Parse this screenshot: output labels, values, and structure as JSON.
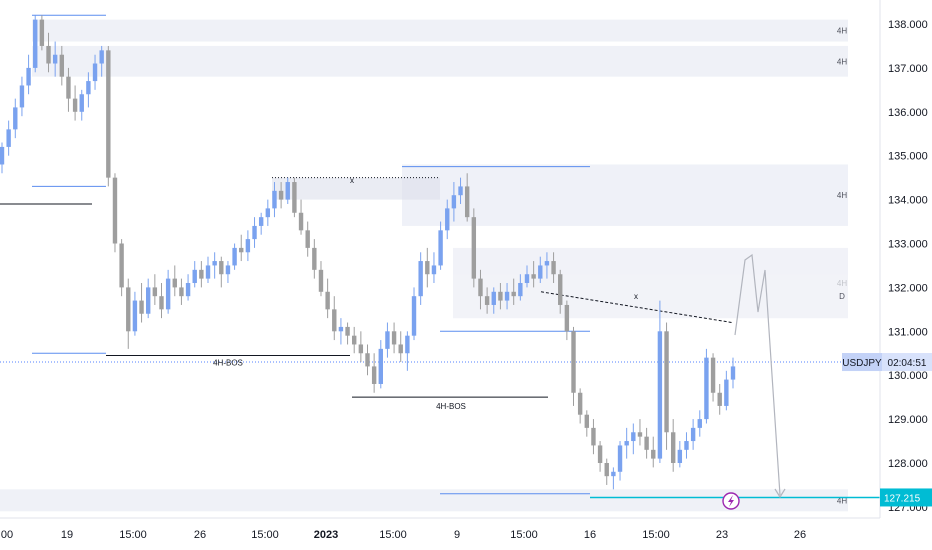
{
  "chart_data": {
    "type": "candlestick",
    "symbol": "USDJPY",
    "price_axis": {
      "range": [
        126.8,
        138.5
      ],
      "ticks": [
        "138.000",
        "137.000",
        "136.000",
        "135.000",
        "134.000",
        "133.000",
        "132.000",
        "131.000",
        "130.000",
        "129.000",
        "128.000",
        "127.000"
      ]
    },
    "time_axis": {
      "ticks": [
        "00",
        "19",
        "15:00",
        "26",
        "15:00",
        "2023",
        "15:00",
        "9",
        "15:00",
        "16",
        "15:00",
        "23",
        "26"
      ]
    },
    "current_price_tag": {
      "symbol": "USDJPY",
      "countdown": "02:04:51",
      "price": 130.3
    },
    "target_tag": {
      "price": "127.215"
    },
    "zones": [
      {
        "price_high": 138.1,
        "price_low": 137.6,
        "label": "4H"
      },
      {
        "price_high": 137.5,
        "price_low": 136.8,
        "label": "4H"
      },
      {
        "price_high": 134.8,
        "price_low": 133.4,
        "label": "4H"
      },
      {
        "price_high": 134.5,
        "price_low": 134.0,
        "label": ""
      },
      {
        "price_high": 132.9,
        "price_low": 131.3,
        "label": "4H"
      },
      {
        "price_high": 132.3,
        "price_low": 131.3,
        "label": "D"
      },
      {
        "price_high": 127.4,
        "price_low": 126.9,
        "label": "4H"
      }
    ],
    "annotations": [
      {
        "text": "4H-BOS",
        "price": 130.5
      },
      {
        "text": "4H-BOS",
        "price": 129.5
      },
      {
        "text": "x",
        "price": 134.45
      },
      {
        "text": "x",
        "price": 131.8
      }
    ],
    "candles": [
      [
        134.8,
        135.3,
        134.6,
        135.2
      ],
      [
        135.2,
        135.8,
        135.0,
        135.6
      ],
      [
        135.6,
        136.3,
        135.4,
        136.1
      ],
      [
        136.1,
        136.8,
        135.9,
        136.6
      ],
      [
        136.6,
        137.3,
        136.4,
        137.0
      ],
      [
        137.0,
        138.2,
        136.9,
        138.1
      ],
      [
        138.1,
        138.2,
        137.4,
        137.5
      ],
      [
        137.5,
        137.8,
        136.9,
        137.1
      ],
      [
        137.1,
        137.6,
        136.8,
        137.3
      ],
      [
        137.3,
        137.5,
        136.6,
        136.8
      ],
      [
        136.8,
        137.0,
        136.0,
        136.3
      ],
      [
        136.3,
        136.6,
        135.8,
        136.0
      ],
      [
        136.0,
        136.5,
        135.8,
        136.4
      ],
      [
        136.4,
        136.9,
        136.1,
        136.7
      ],
      [
        136.7,
        137.3,
        136.5,
        137.1
      ],
      [
        137.1,
        137.5,
        136.8,
        137.4
      ],
      [
        137.4,
        137.5,
        134.3,
        134.5
      ],
      [
        134.5,
        134.6,
        132.8,
        133.0
      ],
      [
        133.0,
        133.1,
        131.8,
        132.0
      ],
      [
        132.0,
        132.2,
        130.6,
        131.0
      ],
      [
        131.0,
        131.9,
        130.9,
        131.7
      ],
      [
        131.7,
        132.1,
        131.2,
        131.4
      ],
      [
        131.4,
        132.2,
        131.3,
        132.0
      ],
      [
        132.0,
        132.3,
        131.6,
        131.8
      ],
      [
        131.8,
        132.1,
        131.3,
        131.5
      ],
      [
        131.5,
        132.4,
        131.4,
        132.2
      ],
      [
        132.2,
        132.5,
        131.8,
        132.0
      ],
      [
        132.0,
        132.2,
        131.6,
        131.8
      ],
      [
        131.8,
        132.3,
        131.7,
        132.1
      ],
      [
        132.1,
        132.6,
        132.0,
        132.4
      ],
      [
        132.4,
        132.6,
        132.0,
        132.2
      ],
      [
        132.2,
        132.7,
        132.1,
        132.5
      ],
      [
        132.5,
        132.8,
        132.2,
        132.6
      ],
      [
        132.6,
        132.7,
        132.0,
        132.3
      ],
      [
        132.3,
        132.6,
        132.1,
        132.5
      ],
      [
        132.5,
        133.0,
        132.4,
        132.9
      ],
      [
        132.9,
        133.2,
        132.6,
        132.8
      ],
      [
        132.8,
        133.3,
        132.6,
        133.1
      ],
      [
        133.1,
        133.6,
        132.9,
        133.4
      ],
      [
        133.4,
        133.7,
        133.2,
        133.6
      ],
      [
        133.6,
        134.0,
        133.4,
        133.8
      ],
      [
        133.8,
        134.4,
        133.6,
        134.2
      ],
      [
        134.2,
        134.4,
        133.8,
        134.0
      ],
      [
        134.0,
        134.5,
        133.9,
        134.4
      ],
      [
        134.4,
        134.5,
        133.6,
        133.7
      ],
      [
        133.7,
        134.0,
        133.2,
        133.3
      ],
      [
        133.3,
        133.5,
        132.7,
        132.9
      ],
      [
        132.9,
        133.1,
        132.2,
        132.4
      ],
      [
        132.4,
        132.6,
        131.8,
        131.9
      ],
      [
        131.9,
        132.2,
        131.3,
        131.5
      ],
      [
        131.5,
        131.8,
        130.8,
        131.0
      ],
      [
        131.0,
        131.3,
        130.7,
        131.1
      ],
      [
        131.1,
        131.2,
        130.7,
        130.9
      ],
      [
        130.9,
        131.1,
        130.5,
        130.7
      ],
      [
        130.7,
        131.0,
        130.3,
        130.5
      ],
      [
        130.5,
        130.7,
        130.0,
        130.2
      ],
      [
        130.2,
        130.5,
        129.6,
        129.8
      ],
      [
        129.8,
        130.8,
        129.7,
        130.6
      ],
      [
        130.6,
        131.2,
        130.4,
        131.0
      ],
      [
        131.0,
        131.2,
        130.5,
        130.7
      ],
      [
        130.7,
        131.0,
        130.3,
        130.5
      ],
      [
        130.5,
        131.0,
        130.1,
        130.9
      ],
      [
        130.9,
        132.0,
        130.8,
        131.8
      ],
      [
        131.8,
        132.8,
        131.6,
        132.6
      ],
      [
        132.6,
        132.9,
        132.0,
        132.3
      ],
      [
        132.3,
        132.8,
        132.1,
        132.5
      ],
      [
        132.5,
        133.5,
        132.4,
        133.3
      ],
      [
        133.3,
        134.0,
        133.1,
        133.8
      ],
      [
        133.8,
        134.4,
        133.5,
        134.1
      ],
      [
        134.1,
        134.5,
        133.9,
        134.3
      ],
      [
        134.3,
        134.6,
        133.5,
        133.6
      ],
      [
        133.6,
        133.8,
        132.0,
        132.2
      ],
      [
        132.2,
        132.4,
        131.5,
        131.8
      ],
      [
        131.8,
        132.0,
        131.4,
        131.6
      ],
      [
        131.6,
        132.0,
        131.4,
        131.9
      ],
      [
        131.9,
        132.1,
        131.5,
        131.7
      ],
      [
        131.7,
        132.1,
        131.5,
        131.9
      ],
      [
        131.9,
        132.2,
        131.6,
        131.8
      ],
      [
        131.8,
        132.3,
        131.7,
        132.1
      ],
      [
        132.1,
        132.5,
        132.0,
        132.3
      ],
      [
        132.3,
        132.6,
        132.0,
        132.2
      ],
      [
        132.2,
        132.7,
        132.1,
        132.5
      ],
      [
        132.5,
        132.8,
        132.2,
        132.6
      ],
      [
        132.6,
        132.8,
        132.1,
        132.3
      ],
      [
        132.3,
        132.4,
        131.4,
        131.6
      ],
      [
        131.6,
        131.7,
        130.8,
        131.0
      ],
      [
        131.0,
        131.1,
        129.3,
        129.6
      ],
      [
        129.6,
        129.7,
        128.9,
        129.1
      ],
      [
        129.1,
        129.2,
        128.6,
        128.8
      ],
      [
        128.8,
        129.0,
        128.2,
        128.4
      ],
      [
        128.4,
        128.5,
        127.8,
        128.0
      ],
      [
        128.0,
        128.1,
        127.5,
        127.7
      ],
      [
        127.7,
        127.9,
        127.4,
        127.8
      ],
      [
        127.8,
        128.5,
        127.6,
        128.4
      ],
      [
        128.4,
        128.8,
        128.1,
        128.5
      ],
      [
        128.5,
        128.9,
        128.2,
        128.7
      ],
      [
        128.7,
        129.0,
        128.4,
        128.6
      ],
      [
        128.6,
        128.8,
        128.1,
        128.3
      ],
      [
        128.3,
        128.6,
        127.9,
        128.1
      ],
      [
        128.1,
        131.7,
        128.0,
        131.0
      ],
      [
        131.0,
        131.2,
        128.3,
        128.7
      ],
      [
        128.7,
        129.0,
        127.8,
        128.0
      ],
      [
        128.0,
        128.5,
        127.9,
        128.3
      ],
      [
        128.3,
        128.7,
        128.1,
        128.5
      ],
      [
        128.5,
        129.0,
        128.3,
        128.8
      ],
      [
        128.8,
        129.2,
        128.6,
        129.0
      ],
      [
        129.0,
        130.6,
        128.9,
        130.4
      ],
      [
        130.4,
        130.5,
        129.4,
        129.6
      ],
      [
        129.6,
        129.8,
        129.1,
        129.3
      ],
      [
        129.3,
        130.1,
        129.2,
        129.9
      ],
      [
        129.9,
        130.4,
        129.7,
        130.2
      ]
    ]
  }
}
